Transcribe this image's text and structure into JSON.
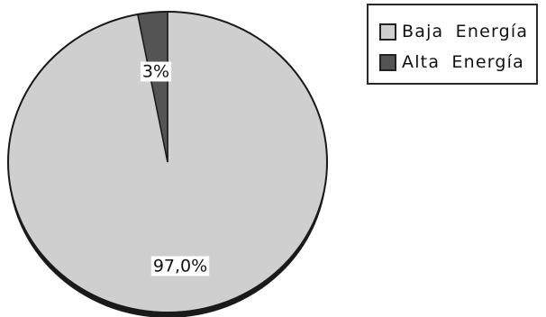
{
  "chart_data": {
    "type": "pie",
    "title": "",
    "legend_position": "top-right",
    "slices": [
      {
        "name": "Baja Energía",
        "value": 97.0,
        "label": "97,0%",
        "color": "#cfcfcf"
      },
      {
        "name": "Alta Energía",
        "value": 3.0,
        "label": "3%",
        "color": "#545454"
      }
    ]
  }
}
